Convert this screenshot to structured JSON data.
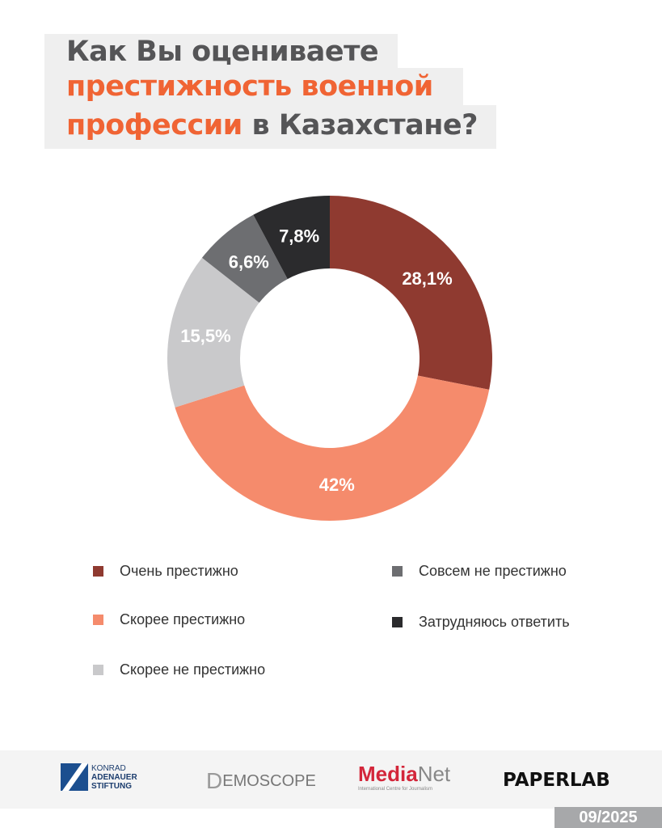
{
  "title": {
    "line1": "Как Вы оцениваете",
    "line2": "престижность военной",
    "line3_accent": "профессии",
    "line3_rest": " в Казахстане?"
  },
  "chart_data": {
    "type": "pie",
    "donut": true,
    "title": "Как Вы оцениваете престижность военной профессии в Казахстане?",
    "categories": [
      "Очень престижно",
      "Скорее престижно",
      "Скорее не престижно",
      "Совсем не престижно",
      "Затрудняюсь ответить"
    ],
    "values": [
      28.1,
      42,
      15.5,
      6.6,
      7.8
    ],
    "labels": [
      "28,1%",
      "42%",
      "15,5%",
      "6,6%",
      "7,8%"
    ],
    "colors": [
      "#8f3a30",
      "#f58b6c",
      "#c9c9cb",
      "#6d6e71",
      "#2b2b2d"
    ],
    "legend_position": "bottom"
  },
  "footer": {
    "logos": {
      "kas": [
        "KONRAD",
        "ADENAUER",
        "STIFTUNG"
      ],
      "demoscope": "EMOSCOPE",
      "medianet_a": "Media",
      "medianet_b": "Net",
      "medianet_sub": "International Centre for Journalism",
      "paperlab": "PAPERLAB"
    },
    "date": "09/2025"
  }
}
